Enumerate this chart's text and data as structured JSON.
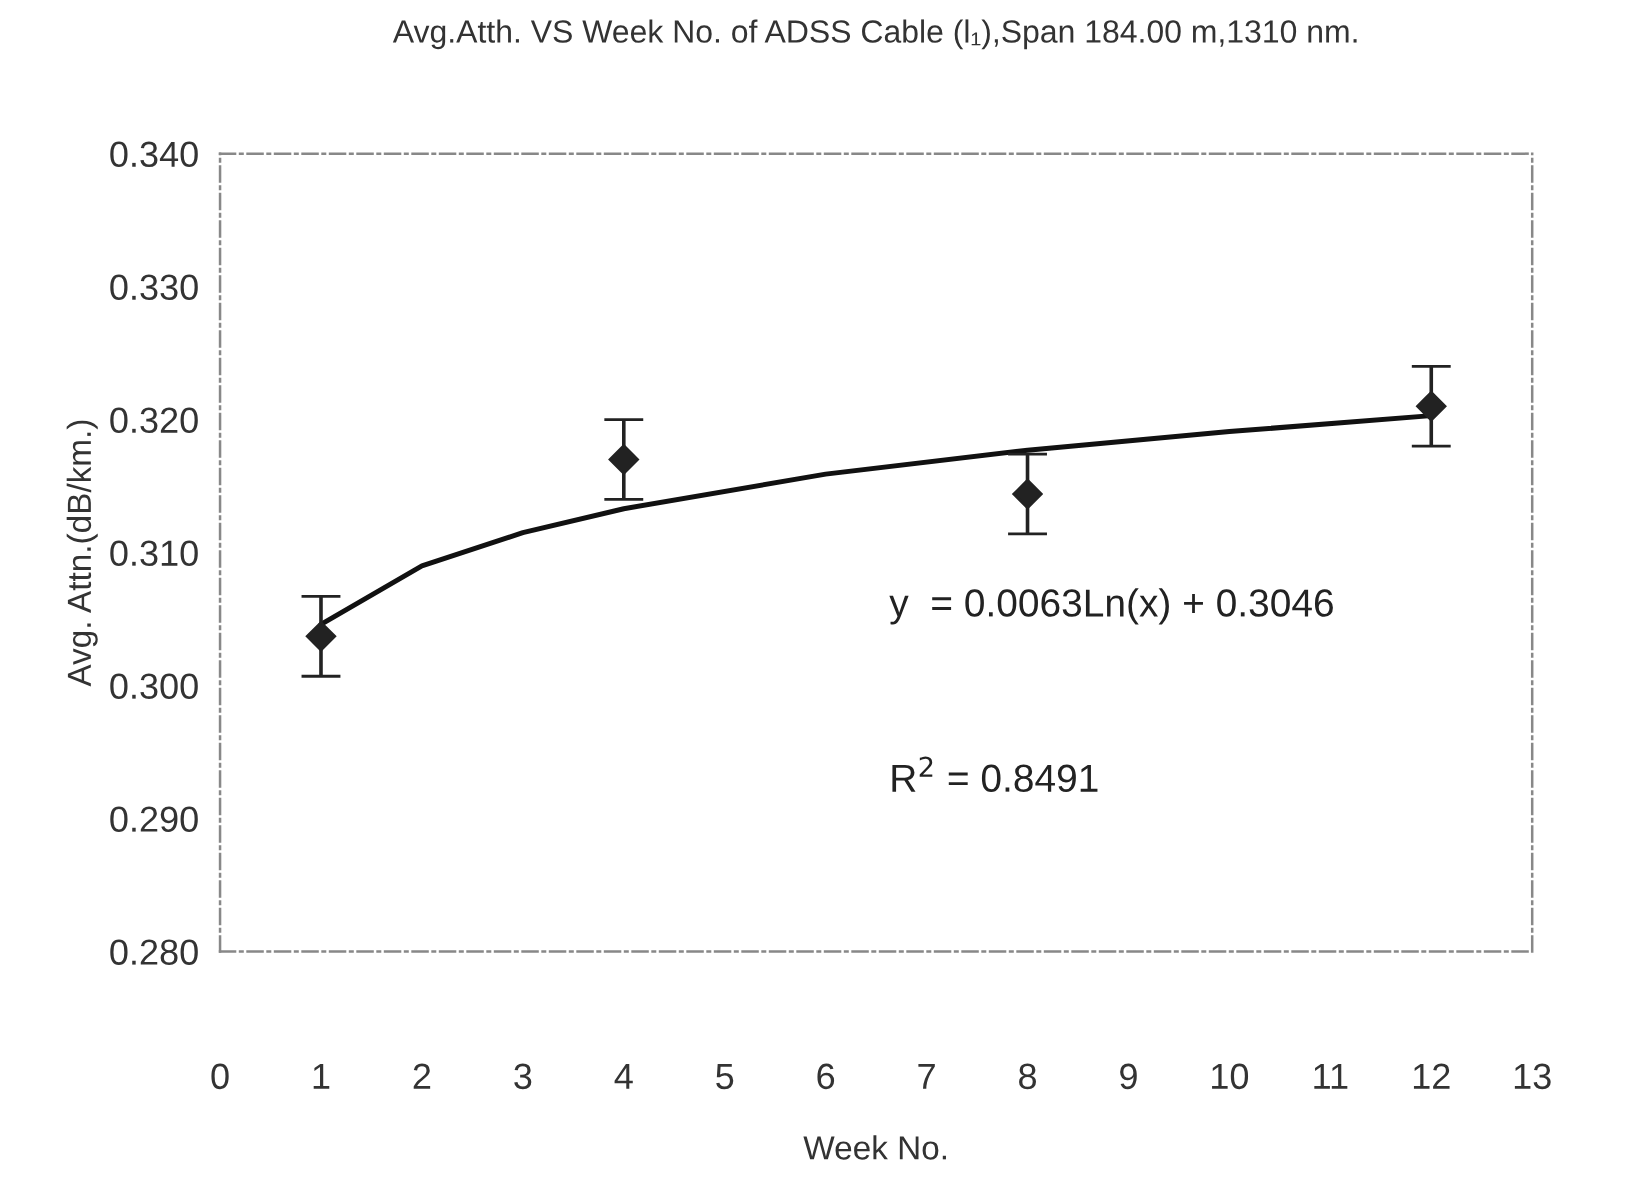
{
  "chart_data": {
    "type": "scatter",
    "title": "Avg.Atth. VS Week No. of ADSS Cable (l₁),Span 184.00 m,1310 nm.",
    "xlabel": "Week No.",
    "ylabel": "Avg. Attn.(dB/km.)",
    "series": [
      {
        "color": "#222222",
        "x": [
          1,
          4,
          8,
          12
        ],
        "values": [
          0.3037,
          0.317,
          0.3144,
          0.321
        ],
        "errors": [
          0.003,
          0.003,
          0.003,
          0.003
        ],
        "marker": "diamond"
      },
      {
        "type": "line",
        "color": "#111111",
        "x": [
          1,
          2,
          3,
          4,
          6,
          8,
          10,
          12
        ],
        "values": [
          0.3046,
          0.309,
          0.3115,
          0.3133,
          0.3159,
          0.3177,
          0.3191,
          0.3203
        ],
        "line_style": "solid"
      }
    ],
    "xlim": [
      0,
      13
    ],
    "xticks": [
      0,
      1,
      2,
      3,
      4,
      5,
      6,
      7,
      8,
      9,
      10,
      11,
      12,
      13
    ],
    "ylim": [
      0.28,
      0.34
    ],
    "yticks": [
      {
        "value": 0.28,
        "label": "0.280"
      },
      {
        "value": 0.29,
        "label": "0.290"
      },
      {
        "value": 0.3,
        "label": "0.300"
      },
      {
        "value": 0.31,
        "label": "0.310"
      },
      {
        "value": 0.32,
        "label": "0.320"
      },
      {
        "value": 0.33,
        "label": "0.330"
      },
      {
        "value": 0.34,
        "label": "0.340"
      }
    ],
    "annotations": [
      "y  = 0.0063Ln(x) + 0.3046",
      "R$^{2}$ = 0.8491"
    ],
    "grid": false,
    "legend": false
  }
}
